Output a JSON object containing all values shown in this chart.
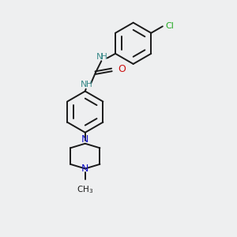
{
  "background_color": "#eeeff0",
  "bond_color": "#1a1a1a",
  "N_color": "#1414c8",
  "O_color": "#cc1010",
  "Cl_color": "#22aa22",
  "NH_color": "#3a8a8a",
  "figsize": [
    3.0,
    3.0
  ],
  "dpi": 100,
  "xlim": [
    -0.5,
    2.0
  ],
  "ylim": [
    -1.6,
    1.6
  ]
}
